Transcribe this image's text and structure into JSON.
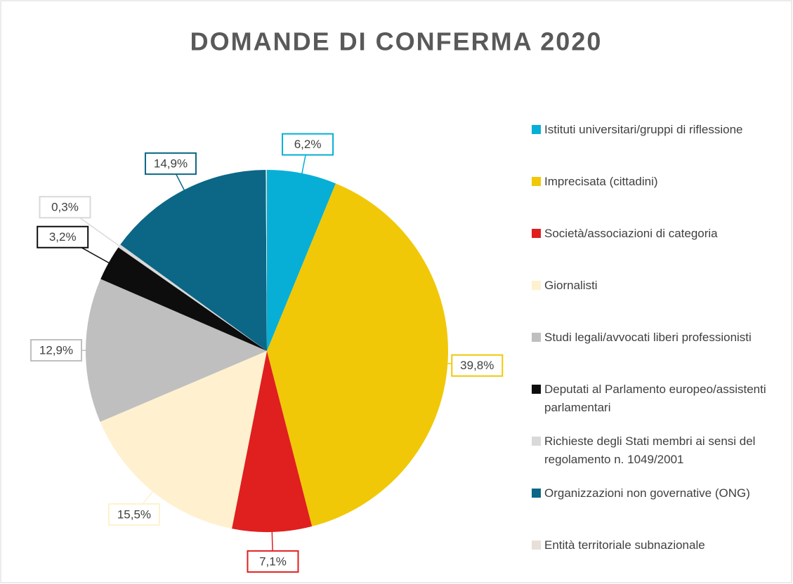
{
  "chart_data": {
    "type": "pie",
    "title": "DOMANDE DI CONFERMA 2020",
    "categories": [
      "Istituti universitari/gruppi di riflessione",
      "Imprecisata (cittadini)",
      "Società/associazioni di categoria",
      "Giornalisti",
      "Studi legali/avvocati liberi professionisti",
      "Deputati al Parlamento europeo/assistenti parlamentari",
      "Richieste degli Stati membri ai sensi del regolamento n. 1049/2001",
      "Organizzazioni non governative (ONG)",
      "Entità territoriale subnazionale"
    ],
    "values": [
      6.2,
      39.8,
      7.1,
      15.5,
      12.9,
      3.2,
      0.3,
      14.9,
      0.1
    ],
    "value_labels": [
      "6,2%",
      "39,8%",
      "7,1%",
      "15,5%",
      "12,9%",
      "3,2%",
      "0,3%",
      "14,9%",
      null
    ],
    "colors": [
      "#07afd6",
      "#f0c808",
      "#e01f1f",
      "#fff1cf",
      "#bfbfbf",
      "#0d0d0d",
      "#d9d9d9",
      "#0c6685",
      "#e8e0d8"
    ],
    "legend": "right"
  }
}
